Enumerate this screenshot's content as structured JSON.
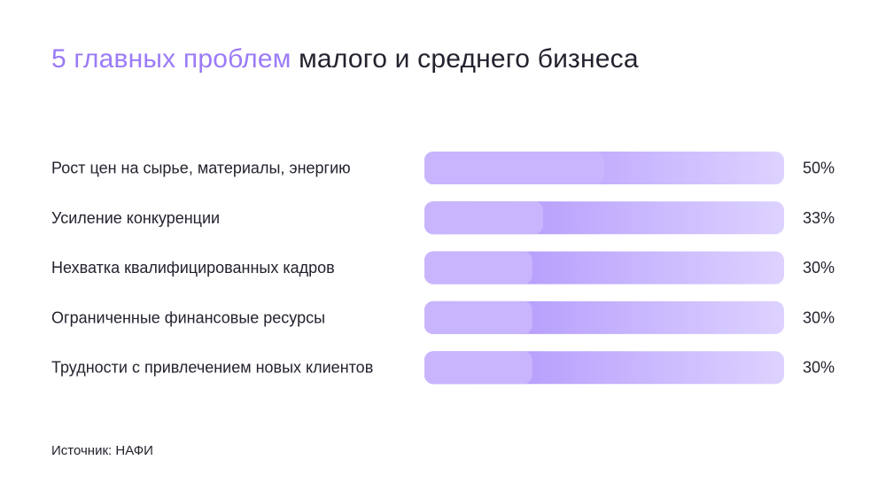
{
  "title": {
    "accent": "5 главных проблем",
    "rest": "малого и среднего бизнеса"
  },
  "chart_data": {
    "type": "bar",
    "orientation": "horizontal",
    "categories": [
      "Рост цен на сырье, материалы, энергию",
      "Усиление конкуренции",
      "Нехватка квалифицированных кадров",
      "Ограниченные финансовые ресурсы",
      "Трудности с привлечением новых клиентов"
    ],
    "values": [
      50,
      33,
      30,
      30,
      30
    ],
    "value_labels": [
      "50%",
      "33%",
      "30%",
      "30%",
      "30%"
    ],
    "xlim": [
      0,
      100
    ],
    "grid": false,
    "legend": "none"
  },
  "source": "Источник: НАФИ",
  "colors": {
    "accent": "#9b7bf7",
    "bar_fill": "#c9b5fd",
    "track_mid": "#a98cfb",
    "track_end": "#ddd2ff",
    "text": "#23232f"
  }
}
